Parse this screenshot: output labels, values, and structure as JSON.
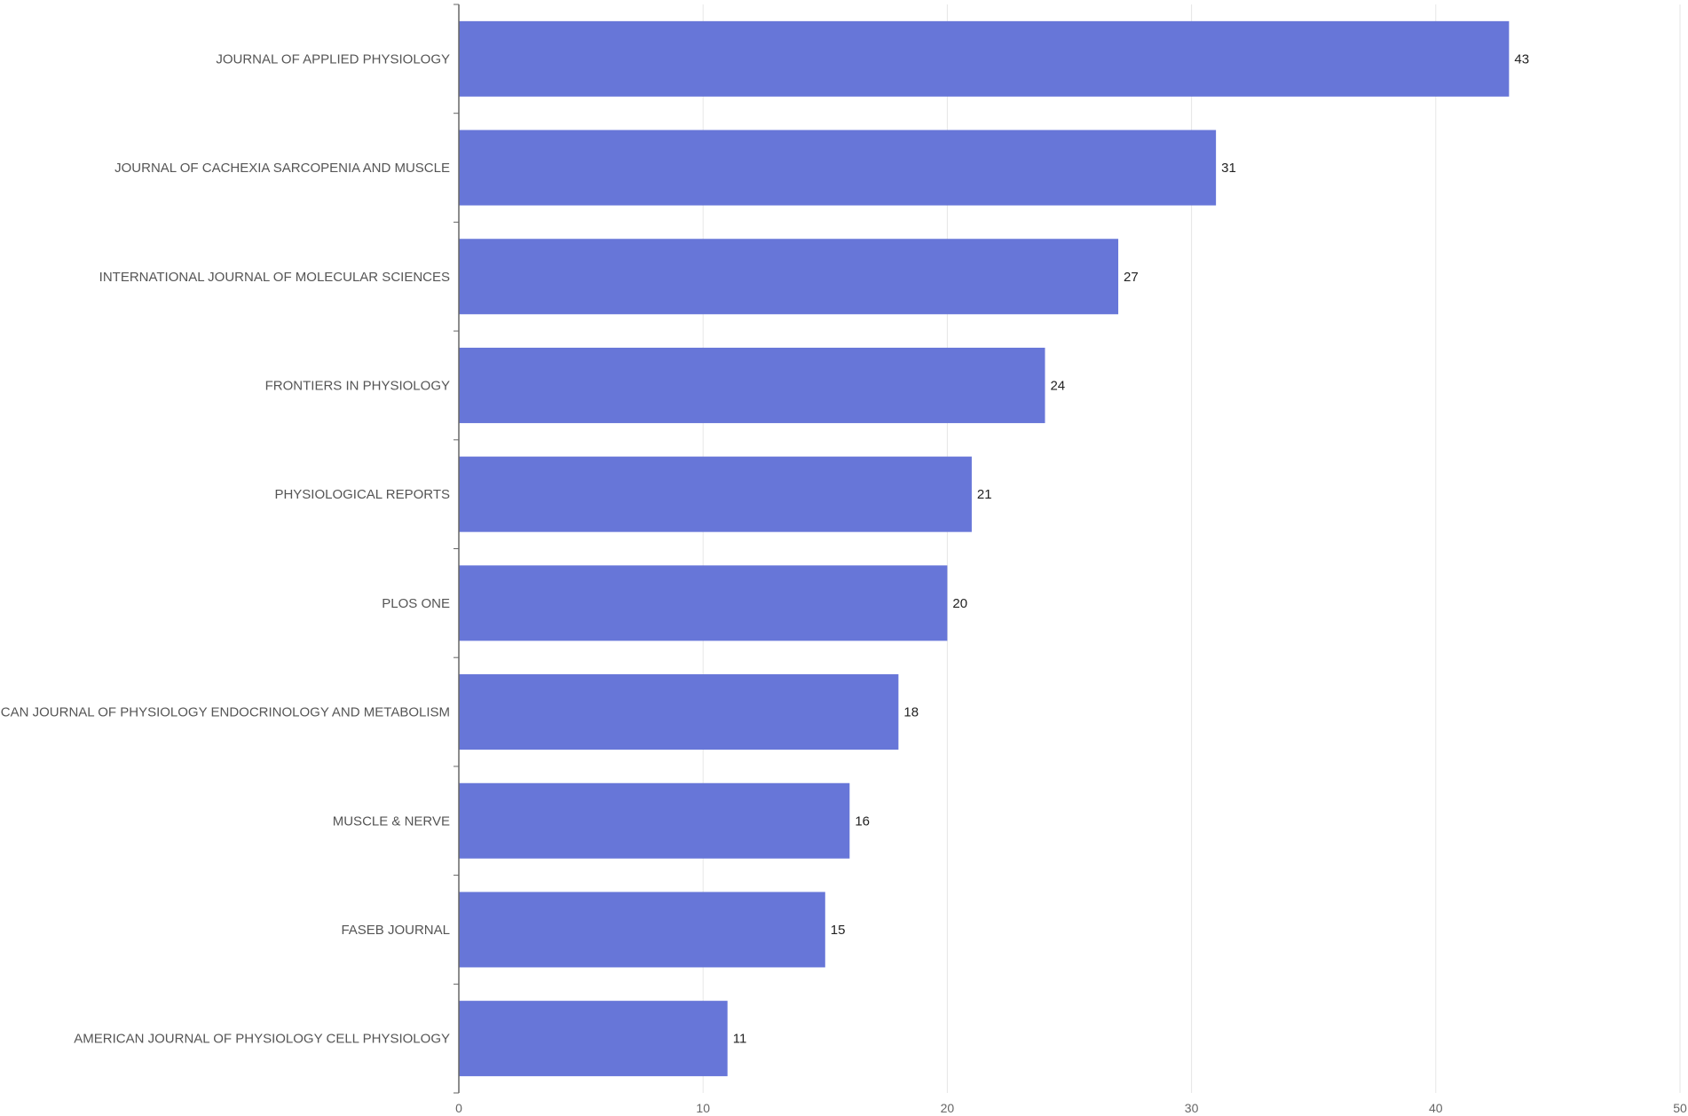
{
  "chart_data": {
    "type": "bar",
    "orientation": "horizontal",
    "title": "",
    "xlabel": "",
    "ylabel": "",
    "categories": [
      "JOURNAL OF APPLIED PHYSIOLOGY",
      "JOURNAL OF CACHEXIA SARCOPENIA AND MUSCLE",
      "INTERNATIONAL JOURNAL OF MOLECULAR SCIENCES",
      "FRONTIERS IN PHYSIOLOGY",
      "PHYSIOLOGICAL REPORTS",
      "PLOS ONE",
      "AMERICAN JOURNAL OF PHYSIOLOGY ENDOCRINOLOGY AND METABOLISM",
      "MUSCLE & NERVE",
      "FASEB JOURNAL",
      "AMERICAN JOURNAL OF PHYSIOLOGY CELL PHYSIOLOGY"
    ],
    "values": [
      43,
      31,
      27,
      24,
      21,
      20,
      18,
      16,
      15,
      11
    ],
    "xlim": [
      0,
      50
    ],
    "xticks": [
      0,
      10,
      20,
      30,
      40,
      50
    ],
    "grid": "vertical",
    "legend": "none",
    "data_labels": true,
    "bar_color": "#6776d8",
    "gridline_color": "#e6e6e6",
    "axis_color": "#666666"
  }
}
